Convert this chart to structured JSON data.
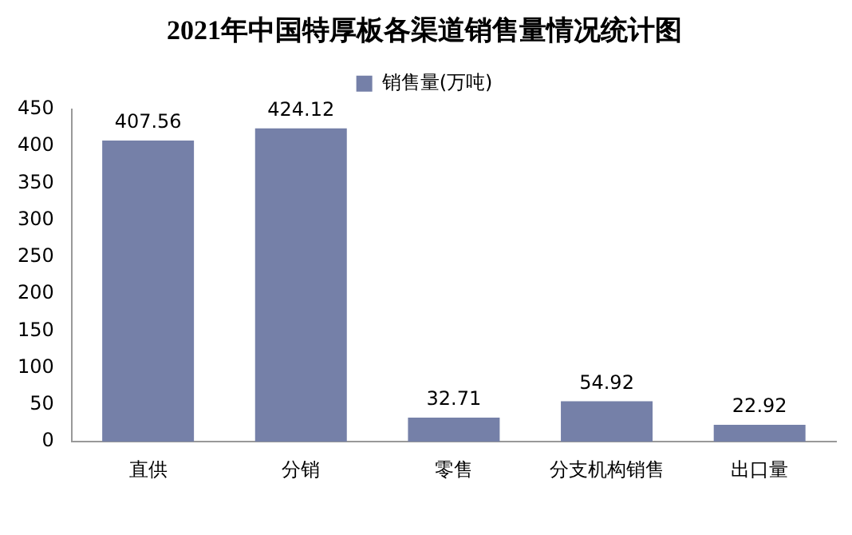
{
  "chart_data": {
    "type": "bar",
    "title": "2021年中国特厚板各渠道销售量情况统计图",
    "categories": [
      "直供",
      "分销",
      "零售",
      "分支机构销售",
      "出口量"
    ],
    "series": [
      {
        "name": "销售量(万吨)",
        "color": "#7580a8",
        "values": [
          407.56,
          424.12,
          32.71,
          54.92,
          22.92
        ]
      }
    ],
    "ylim": [
      0,
      450
    ],
    "yticks": [
      0,
      50,
      100,
      150,
      200,
      250,
      300,
      350,
      400,
      450
    ],
    "grid": false,
    "legend": "top",
    "data_labels": true
  }
}
